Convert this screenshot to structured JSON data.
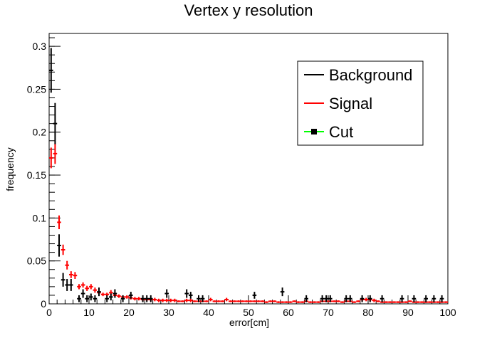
{
  "chart_data": {
    "type": "scatter",
    "title": "Vertex y resolution",
    "xlabel": "error[cm]",
    "ylabel": "frequency",
    "xlim": [
      0,
      100
    ],
    "ylim": [
      0,
      0.315
    ],
    "x_ticks": [
      0,
      10,
      20,
      30,
      40,
      50,
      60,
      70,
      80,
      90,
      100
    ],
    "x_tick_labels": [
      "0",
      "10",
      "20",
      "30",
      "40",
      "50",
      "60",
      "70",
      "80",
      "90",
      "100"
    ],
    "y_ticks": [
      0,
      0.05,
      0.1,
      0.15,
      0.2,
      0.25,
      0.3
    ],
    "y_tick_labels": [
      "0",
      "0.05",
      "0.1",
      "0.15",
      "0.2",
      "0.25",
      "0.3"
    ],
    "grid": false,
    "legend_position": "top-right",
    "legend": [
      {
        "label": "Background",
        "color": "#000000",
        "marker": "line"
      },
      {
        "label": "Signal",
        "color": "#ff0000",
        "marker": "line"
      },
      {
        "label": "Cut",
        "color": "#00ff00",
        "marker": "square"
      }
    ],
    "series": [
      {
        "name": "Background",
        "color": "#000000",
        "x": [
          0.5,
          1.5,
          2.5,
          3.5,
          4.5,
          5.5,
          7.5,
          8.5,
          9.5,
          10.5,
          11.5,
          12.5,
          14.5,
          15.5,
          16.5,
          18.5,
          20.5,
          23.5,
          24.5,
          25.5,
          29.5,
          34.5,
          35.5,
          37.5,
          38.5,
          51.5,
          58.5,
          64.5,
          68.5,
          69.5,
          70.5,
          74.5,
          75.5,
          78.5,
          80.5,
          83.5,
          88.5,
          91.5,
          94.5,
          96.5,
          98.5
        ],
        "y": [
          0.272,
          0.21,
          0.068,
          0.028,
          0.022,
          0.022,
          0.006,
          0.012,
          0.006,
          0.008,
          0.006,
          0.014,
          0.006,
          0.008,
          0.012,
          0.006,
          0.01,
          0.006,
          0.006,
          0.006,
          0.012,
          0.012,
          0.01,
          0.006,
          0.006,
          0.01,
          0.014,
          0.006,
          0.006,
          0.006,
          0.006,
          0.006,
          0.006,
          0.006,
          0.006,
          0.006,
          0.006,
          0.006,
          0.006,
          0.006,
          0.006
        ],
        "yerr": [
          0.026,
          0.024,
          0.013,
          0.008,
          0.007,
          0.007,
          0.004,
          0.005,
          0.004,
          0.004,
          0.004,
          0.005,
          0.004,
          0.004,
          0.005,
          0.004,
          0.004,
          0.004,
          0.004,
          0.004,
          0.005,
          0.005,
          0.004,
          0.004,
          0.004,
          0.004,
          0.005,
          0.004,
          0.004,
          0.004,
          0.004,
          0.004,
          0.004,
          0.004,
          0.004,
          0.004,
          0.004,
          0.004,
          0.004,
          0.004,
          0.004
        ]
      },
      {
        "name": "Signal",
        "color": "#ff0000",
        "x": [
          0.5,
          1.5,
          2.5,
          3.5,
          4.5,
          5.5,
          6.5,
          7.5,
          8.5,
          9.5,
          10.5,
          11.5,
          12.5,
          13.5,
          14.5,
          15.5,
          16.5,
          17.5,
          18.5,
          19.5,
          20.5,
          21.5,
          22.5,
          23.5,
          24.5,
          25.5,
          26.5,
          27.5,
          28.5,
          29.5,
          30.5,
          31.5,
          32.5,
          33.5,
          34.5,
          35.5,
          36.5,
          37.5,
          38.5,
          39.5,
          40.5,
          41.5,
          42.5,
          43.5,
          44.5,
          45.5,
          46.5,
          47.5,
          48.5,
          49.5,
          50.5,
          51.5,
          52.5,
          53.5,
          54.5,
          55.5,
          56.5,
          57.5,
          58.5,
          59.5,
          60.5,
          61.5,
          62.5,
          63.5,
          64.5,
          65.5,
          66.5,
          67.5,
          68.5,
          69.5,
          70.5,
          71.5,
          72.5,
          73.5,
          74.5,
          75.5,
          76.5,
          77.5,
          78.5,
          79.5,
          80.5,
          81.5,
          82.5,
          83.5,
          84.5,
          85.5,
          86.5,
          87.5,
          88.5,
          89.5,
          90.5,
          91.5,
          92.5,
          93.5,
          94.5,
          95.5,
          96.5,
          97.5,
          98.5,
          99.5
        ],
        "y": [
          0.17,
          0.175,
          0.095,
          0.063,
          0.045,
          0.034,
          0.033,
          0.02,
          0.022,
          0.018,
          0.02,
          0.016,
          0.013,
          0.011,
          0.011,
          0.013,
          0.01,
          0.009,
          0.008,
          0.008,
          0.007,
          0.006,
          0.006,
          0.005,
          0.005,
          0.005,
          0.005,
          0.004,
          0.004,
          0.004,
          0.004,
          0.004,
          0.003,
          0.003,
          0.004,
          0.004,
          0.003,
          0.003,
          0.003,
          0.003,
          0.005,
          0.003,
          0.003,
          0.003,
          0.005,
          0.003,
          0.003,
          0.003,
          0.003,
          0.003,
          0.003,
          0.003,
          0.003,
          0.003,
          0.002,
          0.003,
          0.003,
          0.002,
          0.002,
          0.002,
          0.002,
          0.003,
          0.002,
          0.002,
          0.003,
          0.002,
          0.002,
          0.002,
          0.003,
          0.003,
          0.003,
          0.003,
          0.003,
          0.002,
          0.003,
          0.003,
          0.002,
          0.003,
          0.005,
          0.005,
          0.005,
          0.004,
          0.003,
          0.002,
          0.002,
          0.002,
          0.002,
          0.002,
          0.002,
          0.002,
          0.003,
          0.002,
          0.002,
          0.002,
          0.002,
          0.002,
          0.002,
          0.002,
          0.002,
          0.002
        ],
        "yerr": [
          0.012,
          0.012,
          0.008,
          0.006,
          0.005,
          0.004,
          0.004,
          0.003,
          0.003,
          0.003,
          0.003,
          0.003,
          0.003,
          0.002,
          0.002,
          0.003,
          0.002,
          0.002,
          0.002,
          0.002,
          0.002,
          0.002,
          0.002,
          0.002,
          0.002,
          0.002,
          0.002,
          0.002,
          0.002,
          0.002,
          0.002,
          0.002,
          0.001,
          0.001,
          0.002,
          0.002,
          0.001,
          0.001,
          0.001,
          0.001,
          0.002,
          0.001,
          0.001,
          0.001,
          0.002,
          0.001,
          0.001,
          0.001,
          0.001,
          0.001,
          0.001,
          0.001,
          0.001,
          0.001,
          0.001,
          0.001,
          0.001,
          0.001,
          0.001,
          0.001,
          0.001,
          0.001,
          0.001,
          0.001,
          0.001,
          0.001,
          0.001,
          0.001,
          0.001,
          0.001,
          0.001,
          0.001,
          0.001,
          0.001,
          0.001,
          0.001,
          0.001,
          0.001,
          0.002,
          0.002,
          0.002,
          0.002,
          0.001,
          0.001,
          0.001,
          0.001,
          0.001,
          0.001,
          0.001,
          0.001,
          0.001,
          0.001,
          0.001,
          0.001,
          0.001,
          0.001,
          0.001,
          0.001,
          0.001,
          0.001
        ]
      },
      {
        "name": "Cut",
        "color": "#00ff00",
        "x": [],
        "y": []
      }
    ]
  }
}
